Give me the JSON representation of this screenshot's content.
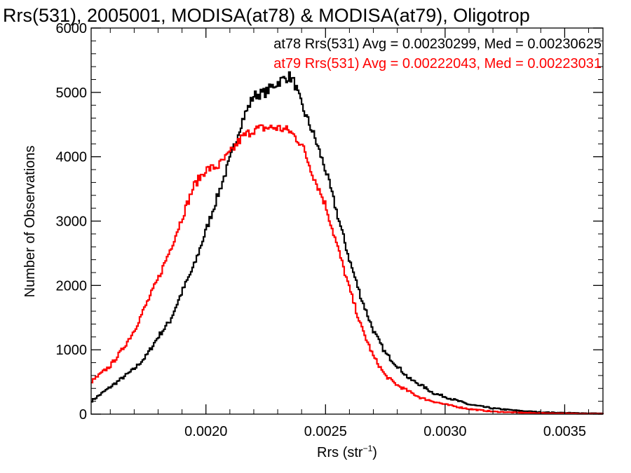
{
  "chart_data": {
    "type": "line",
    "title": "Rrs(531), 2005001, MODISA(at78) & MODISA(at79), Oligotrop",
    "xlabel": {
      "main": "Rrs (str",
      "sup": "−1",
      "close": ")"
    },
    "ylabel": "Number of Observations",
    "xlim": [
      0.00152,
      0.00366
    ],
    "ylim": [
      0,
      6000
    ],
    "xticks": [
      {
        "value": 0.002,
        "label": "0.0020"
      },
      {
        "value": 0.0025,
        "label": "0.0025"
      },
      {
        "value": 0.003,
        "label": "0.0030"
      },
      {
        "value": 0.0035,
        "label": "0.0035"
      }
    ],
    "yticks": [
      {
        "value": 0,
        "label": "0"
      },
      {
        "value": 1000,
        "label": "1000"
      },
      {
        "value": 2000,
        "label": "2000"
      },
      {
        "value": 3000,
        "label": "3000"
      },
      {
        "value": 4000,
        "label": "4000"
      },
      {
        "value": 5000,
        "label": "5000"
      },
      {
        "value": 6000,
        "label": "6000"
      }
    ],
    "legend": [
      {
        "text": "at78 Rrs(531) Avg = 0.00230299, Med = 0.00230625",
        "color": "#000000"
      },
      {
        "text": "at79 Rrs(531) Avg = 0.00222043, Med = 0.00223031",
        "color": "#ff0000"
      }
    ],
    "step": "histogram",
    "series": [
      {
        "color": "#000000",
        "x": [
          0.00152,
          0.0016,
          0.0017,
          0.00175,
          0.0018,
          0.00185,
          0.0019,
          0.00195,
          0.002,
          0.00205,
          0.0021,
          0.00215,
          0.0022,
          0.00225,
          0.00228,
          0.00232,
          0.00235,
          0.00237,
          0.0024,
          0.00245,
          0.0025,
          0.00255,
          0.0026,
          0.00265,
          0.0027,
          0.00275,
          0.0028,
          0.00285,
          0.0029,
          0.00295,
          0.003,
          0.0031,
          0.0032,
          0.0033,
          0.0034,
          0.0035,
          0.00366
        ],
        "y": [
          200,
          420,
          700,
          900,
          1200,
          1450,
          1900,
          2300,
          2850,
          3400,
          3950,
          4550,
          4950,
          5000,
          5100,
          5200,
          5250,
          5150,
          4800,
          4350,
          3800,
          3100,
          2400,
          1800,
          1300,
          950,
          750,
          550,
          450,
          330,
          270,
          150,
          90,
          55,
          30,
          20,
          10
        ]
      },
      {
        "color": "#ff0000",
        "x": [
          0.00152,
          0.0016,
          0.00165,
          0.0017,
          0.00175,
          0.0018,
          0.00185,
          0.0019,
          0.00195,
          0.002,
          0.00205,
          0.0021,
          0.00215,
          0.0022,
          0.00225,
          0.0023,
          0.00235,
          0.0024,
          0.00245,
          0.0025,
          0.00255,
          0.0026,
          0.00265,
          0.0027,
          0.00275,
          0.0028,
          0.00285,
          0.0029,
          0.003,
          0.0031,
          0.0032,
          0.0033,
          0.0034,
          0.0035,
          0.00366
        ],
        "y": [
          500,
          750,
          1000,
          1300,
          1700,
          2100,
          2550,
          3050,
          3550,
          3800,
          3850,
          4050,
          4300,
          4420,
          4450,
          4450,
          4400,
          4200,
          3700,
          3250,
          2600,
          1950,
          1350,
          900,
          600,
          450,
          350,
          250,
          150,
          80,
          40,
          25,
          15,
          10,
          5
        ]
      }
    ]
  }
}
